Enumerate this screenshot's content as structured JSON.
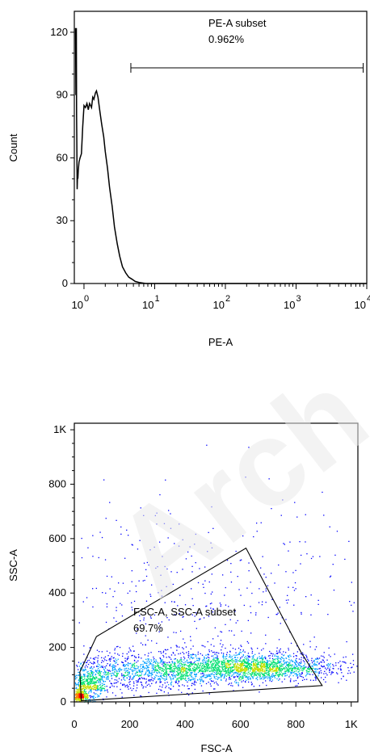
{
  "watermark": "Arch",
  "chart_data": [
    {
      "type": "histogram",
      "xlabel": "PE-A",
      "ylabel": "Count",
      "x_scale": "log",
      "x_ticks": [
        {
          "value": 1,
          "base": "10",
          "exp": "0"
        },
        {
          "value": 10,
          "base": "10",
          "exp": "1"
        },
        {
          "value": 100,
          "base": "10",
          "exp": "2"
        },
        {
          "value": 1000,
          "base": "10",
          "exp": "3"
        },
        {
          "value": 10000,
          "base": "10",
          "exp": "4"
        }
      ],
      "y_ticks": [
        {
          "value": 0,
          "label": "0"
        },
        {
          "value": 30,
          "label": "30"
        },
        {
          "value": 60,
          "label": "60"
        },
        {
          "value": 90,
          "label": "90"
        },
        {
          "value": 120,
          "label": "120"
        }
      ],
      "xlim": [
        0.73,
        10000
      ],
      "ylim": [
        0,
        130
      ],
      "grid": false,
      "gate": {
        "name": "PE-A subset",
        "value": "0.962%",
        "range": [
          4.6,
          8900
        ]
      },
      "points": [
        [
          0.76,
          122
        ],
        [
          0.77,
          90
        ],
        [
          0.775,
          100
        ],
        [
          0.78,
          122
        ],
        [
          0.785,
          80
        ],
        [
          0.79,
          72
        ],
        [
          0.8,
          45
        ],
        [
          0.81,
          52
        ],
        [
          0.82,
          50
        ],
        [
          0.83,
          54
        ],
        [
          0.85,
          58
        ],
        [
          0.88,
          60
        ],
        [
          0.92,
          62
        ],
        [
          0.96,
          75
        ],
        [
          1.0,
          85
        ],
        [
          1.05,
          84
        ],
        [
          1.1,
          86
        ],
        [
          1.15,
          83
        ],
        [
          1.2,
          86
        ],
        [
          1.28,
          84
        ],
        [
          1.33,
          89
        ],
        [
          1.38,
          88
        ],
        [
          1.45,
          91
        ],
        [
          1.5,
          92
        ],
        [
          1.58,
          89
        ],
        [
          1.68,
          82
        ],
        [
          1.78,
          76
        ],
        [
          1.9,
          70
        ],
        [
          2.0,
          63
        ],
        [
          2.15,
          55
        ],
        [
          2.3,
          46
        ],
        [
          2.5,
          37
        ],
        [
          2.7,
          27
        ],
        [
          2.95,
          19
        ],
        [
          3.2,
          13
        ],
        [
          3.5,
          8
        ],
        [
          3.9,
          5
        ],
        [
          4.3,
          3
        ],
        [
          4.8,
          2
        ],
        [
          5.3,
          1
        ],
        [
          6.0,
          0.5
        ],
        [
          7.5,
          0
        ],
        [
          10000,
          0
        ]
      ]
    },
    {
      "type": "scatter",
      "xlabel": "FSC-A",
      "ylabel": "SSC-A",
      "x_ticks": [
        {
          "value": 0,
          "label": "0"
        },
        {
          "value": 200,
          "label": "200"
        },
        {
          "value": 400,
          "label": "400"
        },
        {
          "value": 600,
          "label": "600"
        },
        {
          "value": 800,
          "label": "800"
        },
        {
          "value": 1000,
          "label": "1K"
        }
      ],
      "y_ticks": [
        {
          "value": 0,
          "label": "0"
        },
        {
          "value": 200,
          "label": "200"
        },
        {
          "value": 400,
          "label": "400"
        },
        {
          "value": 600,
          "label": "600"
        },
        {
          "value": 800,
          "label": "800"
        },
        {
          "value": 1000,
          "label": "1K"
        }
      ],
      "xlim": [
        0,
        1024
      ],
      "ylim": [
        0,
        1024
      ],
      "grid": false,
      "density_colors": [
        "#0000ff",
        "#00a0ff",
        "#00e070",
        "#c8e000",
        "#ff8000",
        "#ff0000"
      ],
      "gate": {
        "name": "FSC-A, SSC-A subset",
        "value": "69.7%",
        "polygon": [
          [
            25,
            5
          ],
          [
            20,
            110
          ],
          [
            80,
            240
          ],
          [
            620,
            565
          ],
          [
            820,
            180
          ],
          [
            895,
            60
          ],
          [
            40,
            5
          ]
        ]
      },
      "clusters": [
        {
          "center": [
            650,
            115
          ],
          "spread": [
            150,
            32
          ],
          "count": 1700
        },
        {
          "center": [
            300,
            95
          ],
          "spread": [
            180,
            45
          ],
          "count": 1300
        },
        {
          "center": [
            45,
            45
          ],
          "spread": [
            35,
            40
          ],
          "count": 500
        },
        {
          "center": [
            18,
            18
          ],
          "spread": [
            10,
            12
          ],
          "count": 260
        },
        {
          "center": [
            450,
            300
          ],
          "spread": [
            280,
            210
          ],
          "count": 420
        }
      ]
    }
  ]
}
